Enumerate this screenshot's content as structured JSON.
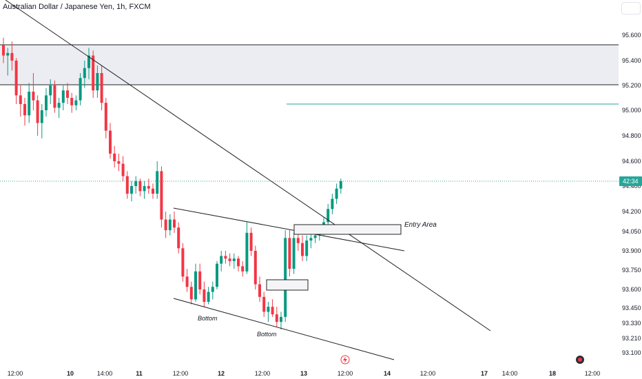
{
  "chart_data": {
    "type": "candlestick",
    "title": "Australian Dollar / Japanese Yen, 1h, FXCM",
    "price_axis": {
      "ticks": [
        "95.600",
        "95.400",
        "95.200",
        "95.000",
        "94.800",
        "94.600",
        "94.400",
        "94.200",
        "94.050",
        "93.900",
        "93.750",
        "93.600",
        "93.450",
        "93.330",
        "93.210",
        "93.100"
      ],
      "current_price_label": "42:34"
    },
    "time_axis": {
      "ticks": [
        "12:00",
        "10",
        "14:00",
        "11",
        "12:00",
        "12",
        "12:00",
        "13",
        "12:00",
        "14",
        "12:00",
        "17",
        "14:00",
        "18",
        "12:00"
      ]
    },
    "annotations": {
      "entry_area": "Entry Area",
      "bottom_1": "Bottom",
      "bottom_2": "Bottom"
    },
    "colors": {
      "up": "#089981",
      "down": "#f23645",
      "zone_fill": "#ebedf2",
      "target_line": "#26a69a",
      "current_price": "#26a69a",
      "trendline": "#1f1f1f"
    },
    "icons": [
      "lightning-icon",
      "avatar-icon"
    ],
    "candles": [
      [
        95.52,
        95.58,
        95.38,
        95.44
      ],
      [
        95.44,
        95.5,
        95.28,
        95.46
      ],
      [
        95.46,
        95.55,
        95.32,
        95.4
      ],
      [
        95.4,
        95.42,
        95.05,
        95.12
      ],
      [
        95.12,
        95.2,
        94.95,
        95.05
      ],
      [
        95.05,
        95.1,
        94.88,
        94.96
      ],
      [
        94.96,
        95.22,
        94.9,
        95.15
      ],
      [
        95.15,
        95.3,
        95.0,
        95.08
      ],
      [
        95.08,
        95.12,
        94.8,
        94.9
      ],
      [
        94.9,
        95.05,
        94.78,
        95.0
      ],
      [
        95.0,
        95.18,
        94.95,
        95.12
      ],
      [
        95.12,
        95.25,
        95.05,
        95.2
      ],
      [
        95.2,
        95.24,
        94.98,
        95.02
      ],
      [
        95.02,
        95.1,
        94.94,
        95.06
      ],
      [
        95.06,
        95.2,
        95.0,
        95.16
      ],
      [
        95.16,
        95.22,
        95.05,
        95.1
      ],
      [
        95.1,
        95.14,
        94.98,
        95.04
      ],
      [
        95.04,
        95.12,
        95.0,
        95.08
      ],
      [
        95.08,
        95.3,
        95.04,
        95.26
      ],
      [
        95.26,
        95.4,
        95.18,
        95.34
      ],
      [
        95.34,
        95.5,
        95.25,
        95.44
      ],
      [
        95.44,
        95.48,
        95.1,
        95.16
      ],
      [
        95.16,
        95.36,
        95.1,
        95.3
      ],
      [
        95.3,
        95.36,
        95.0,
        95.06
      ],
      [
        95.06,
        95.1,
        94.78,
        94.84
      ],
      [
        94.84,
        94.9,
        94.62,
        94.66
      ],
      [
        94.66,
        94.72,
        94.55,
        94.6
      ],
      [
        94.6,
        94.66,
        94.52,
        94.58
      ],
      [
        94.58,
        94.64,
        94.44,
        94.48
      ],
      [
        94.48,
        94.52,
        94.3,
        94.34
      ],
      [
        94.34,
        94.44,
        94.28,
        94.4
      ],
      [
        94.4,
        94.48,
        94.34,
        94.44
      ],
      [
        94.44,
        94.46,
        94.32,
        94.36
      ],
      [
        94.36,
        94.44,
        94.3,
        94.4
      ],
      [
        94.4,
        94.46,
        94.34,
        94.38
      ],
      [
        94.38,
        94.42,
        94.3,
        94.34
      ],
      [
        94.34,
        94.6,
        94.3,
        94.52
      ],
      [
        94.52,
        94.56,
        94.08,
        94.14
      ],
      [
        94.14,
        94.2,
        94.0,
        94.06
      ],
      [
        94.06,
        94.18,
        94.02,
        94.14
      ],
      [
        94.14,
        94.2,
        94.04,
        94.08
      ],
      [
        94.08,
        94.12,
        93.88,
        93.92
      ],
      [
        93.92,
        93.96,
        93.66,
        93.7
      ],
      [
        93.7,
        93.76,
        93.58,
        93.62
      ],
      [
        93.62,
        93.66,
        93.48,
        93.52
      ],
      [
        93.52,
        93.8,
        93.5,
        93.74
      ],
      [
        93.74,
        93.8,
        93.56,
        93.6
      ],
      [
        93.6,
        93.66,
        93.46,
        93.5
      ],
      [
        93.5,
        93.62,
        93.48,
        93.58
      ],
      [
        93.58,
        93.66,
        93.52,
        93.62
      ],
      [
        93.62,
        93.82,
        93.6,
        93.8
      ],
      [
        93.8,
        93.9,
        93.74,
        93.86
      ],
      [
        93.86,
        93.9,
        93.8,
        93.84
      ],
      [
        93.84,
        93.88,
        93.78,
        93.82
      ],
      [
        93.82,
        93.88,
        93.76,
        93.84
      ],
      [
        93.84,
        93.86,
        93.74,
        93.78
      ],
      [
        93.78,
        93.82,
        93.7,
        93.74
      ],
      [
        93.74,
        94.12,
        93.72,
        94.04
      ],
      [
        94.04,
        94.08,
        93.86,
        93.9
      ],
      [
        93.9,
        93.94,
        93.6,
        93.64
      ],
      [
        93.64,
        93.7,
        93.5,
        93.54
      ],
      [
        93.54,
        93.58,
        93.38,
        93.42
      ],
      [
        93.42,
        93.5,
        93.34,
        93.46
      ],
      [
        93.46,
        93.52,
        93.38,
        93.4
      ],
      [
        93.4,
        93.46,
        93.3,
        93.34
      ],
      [
        93.34,
        93.42,
        93.28,
        93.38
      ],
      [
        93.38,
        94.06,
        93.34,
        94.0
      ],
      [
        94.0,
        94.06,
        93.7,
        93.76
      ],
      [
        93.76,
        94.04,
        93.72,
        94.0
      ],
      [
        94.0,
        94.06,
        93.9,
        93.96
      ],
      [
        93.96,
        94.02,
        93.82,
        93.86
      ],
      [
        93.86,
        94.02,
        93.82,
        93.98
      ],
      [
        93.98,
        94.04,
        93.92,
        94.0
      ],
      [
        94.0,
        94.06,
        93.96,
        94.02
      ],
      [
        94.02,
        94.1,
        93.98,
        94.06
      ],
      [
        94.06,
        94.16,
        94.02,
        94.12
      ],
      [
        94.12,
        94.26,
        94.08,
        94.22
      ],
      [
        94.22,
        94.34,
        94.18,
        94.3
      ],
      [
        94.3,
        94.42,
        94.26,
        94.38
      ],
      [
        94.38,
        94.46,
        94.34,
        94.44
      ]
    ]
  }
}
